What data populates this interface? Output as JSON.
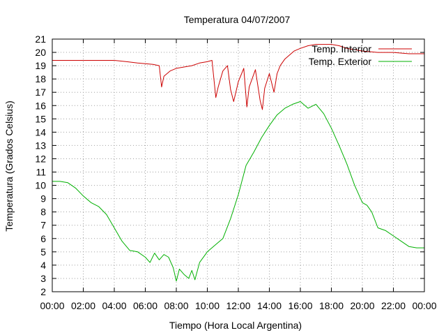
{
  "chart_data": {
    "type": "line",
    "title": "Temperatura 04/07/2007",
    "xlabel": "Tiempo (Hora Local Argentina)",
    "ylabel": "Temperatura (Grados Celsius)",
    "xlim": [
      0,
      24
    ],
    "ylim": [
      2,
      21
    ],
    "x_ticks": [
      "00:00",
      "02:00",
      "04:00",
      "06:00",
      "08:00",
      "10:00",
      "12:00",
      "14:00",
      "16:00",
      "18:00",
      "20:00",
      "22:00",
      "00:00"
    ],
    "y_ticks": [
      "2",
      "3",
      "4",
      "5",
      "6",
      "7",
      "8",
      "9",
      "10",
      "11",
      "12",
      "13",
      "14",
      "15",
      "16",
      "17",
      "18",
      "19",
      "20",
      "21"
    ],
    "grid": true,
    "legend_position": "top-right",
    "series": [
      {
        "name": "Temp. Interior",
        "color": "#cc0000",
        "x": [
          0,
          2,
          4,
          4.8,
          5.5,
          6.5,
          6.9,
          7.05,
          7.2,
          7.6,
          8.0,
          8.5,
          9.0,
          9.5,
          10.0,
          10.3,
          10.55,
          10.7,
          11.0,
          11.3,
          11.5,
          11.7,
          12.0,
          12.35,
          12.55,
          12.7,
          13.1,
          13.4,
          13.55,
          13.7,
          14.0,
          14.3,
          14.5,
          14.7,
          15.0,
          15.3,
          15.6,
          16.0,
          16.5,
          17.0,
          17.5,
          18.0,
          18.5,
          19.0,
          20.0,
          21.0,
          22.0,
          23.0,
          24.0
        ],
        "values": [
          19.4,
          19.4,
          19.4,
          19.3,
          19.2,
          19.1,
          19.0,
          17.4,
          18.2,
          18.6,
          18.8,
          18.9,
          19.0,
          19.2,
          19.3,
          19.4,
          16.6,
          17.4,
          18.6,
          19.0,
          17.2,
          16.3,
          17.8,
          18.8,
          15.9,
          17.4,
          18.7,
          16.4,
          15.7,
          17.3,
          18.4,
          17.0,
          18.4,
          19.0,
          19.5,
          19.8,
          20.1,
          20.3,
          20.5,
          20.6,
          20.6,
          20.6,
          20.5,
          20.3,
          20.1,
          20.0,
          20.0,
          19.9,
          19.9
        ]
      },
      {
        "name": "Temp. Exterior",
        "color": "#00b000",
        "x": [
          0,
          0.5,
          1.0,
          1.5,
          2.0,
          2.5,
          3.0,
          3.5,
          4.0,
          4.5,
          5.0,
          5.5,
          6.0,
          6.3,
          6.6,
          6.9,
          7.2,
          7.5,
          7.8,
          8.0,
          8.2,
          8.5,
          8.8,
          9.0,
          9.2,
          9.5,
          10.0,
          10.5,
          11.0,
          11.5,
          12.0,
          12.5,
          13.0,
          13.5,
          14.0,
          14.5,
          15.0,
          15.5,
          16.0,
          16.5,
          17.0,
          17.5,
          18.0,
          18.5,
          19.0,
          19.5,
          20.0,
          20.3,
          20.6,
          21.0,
          21.5,
          22.0,
          22.5,
          23.0,
          23.5,
          24.0
        ],
        "values": [
          10.3,
          10.3,
          10.2,
          9.8,
          9.2,
          8.7,
          8.4,
          7.8,
          6.8,
          5.8,
          5.1,
          5.0,
          4.6,
          4.2,
          4.9,
          4.4,
          4.8,
          4.6,
          3.8,
          2.8,
          3.7,
          3.3,
          3.0,
          3.6,
          2.9,
          4.2,
          5.0,
          5.5,
          6.0,
          7.5,
          9.3,
          11.5,
          12.5,
          13.6,
          14.5,
          15.3,
          15.8,
          16.1,
          16.3,
          15.8,
          16.1,
          15.4,
          14.3,
          13.0,
          11.6,
          10.0,
          8.7,
          8.5,
          8.0,
          6.8,
          6.6,
          6.2,
          5.8,
          5.4,
          5.3,
          5.3
        ]
      }
    ]
  }
}
